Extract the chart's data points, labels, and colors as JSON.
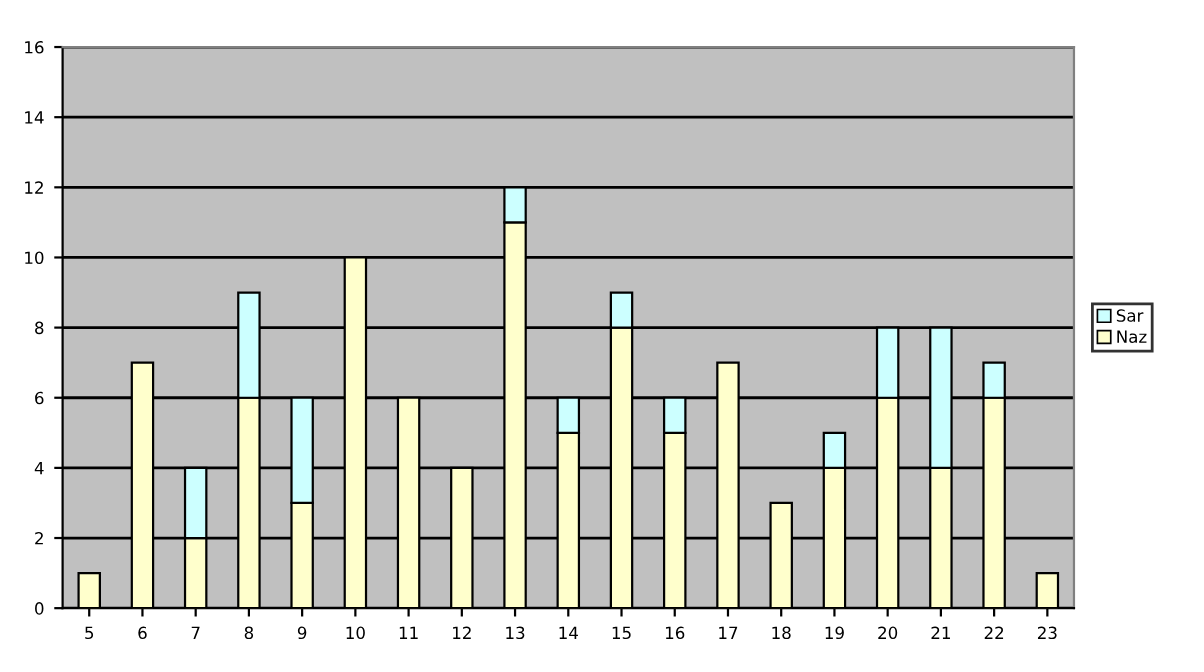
{
  "chart_data": {
    "type": "bar",
    "stacked": true,
    "categories": [
      "5",
      "6",
      "7",
      "8",
      "9",
      "10",
      "11",
      "12",
      "13",
      "14",
      "15",
      "16",
      "17",
      "18",
      "19",
      "20",
      "21",
      "22",
      "23"
    ],
    "series": [
      {
        "name": "Naz",
        "color": "#ffffcc",
        "values": [
          1,
          7,
          2,
          6,
          3,
          10,
          6,
          4,
          11,
          5,
          8,
          5,
          7,
          3,
          4,
          6,
          4,
          6,
          1
        ]
      },
      {
        "name": "Sar",
        "color": "#ccffff",
        "values": [
          null,
          null,
          2,
          3,
          3,
          null,
          null,
          null,
          1,
          1,
          1,
          1,
          null,
          null,
          1,
          2,
          4,
          1,
          null
        ]
      }
    ],
    "ylim": [
      0,
      16
    ],
    "yticks": [
      0,
      2,
      4,
      6,
      8,
      10,
      12,
      14,
      16
    ],
    "grid": "y",
    "legend": "right"
  }
}
